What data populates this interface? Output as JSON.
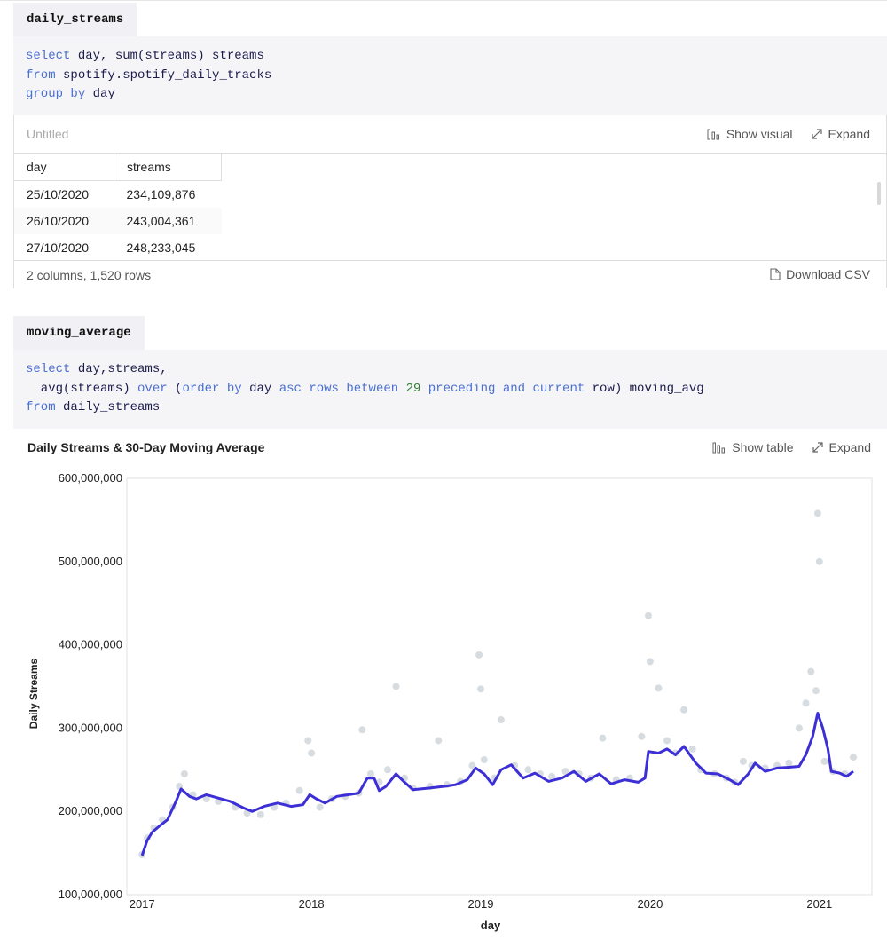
{
  "cell1": {
    "name": "daily_streams",
    "code": {
      "l1_kw": "select",
      "l1_rest": " day, sum(streams) streams",
      "l2_kw": "from",
      "l2_rest": " spotify.spotify_daily_tracks",
      "l3_kw1": "group",
      "l3_kw2": "by",
      "l3_rest": " day"
    },
    "result_title": "Untitled",
    "actions": {
      "visual": "Show visual",
      "expand": "Expand"
    },
    "table": {
      "columns": [
        "day",
        "streams"
      ],
      "rows": [
        [
          "25/10/2020",
          "234,109,876"
        ],
        [
          "26/10/2020",
          "243,004,361"
        ],
        [
          "27/10/2020",
          "248,233,045"
        ]
      ]
    },
    "footer": {
      "summary": "2 columns, 1,520 rows",
      "download": "Download CSV"
    }
  },
  "cell2": {
    "name": "moving_average",
    "code": {
      "l1_kw": "select",
      "l1_rest": " day,streams,",
      "l2_pre": "  avg(streams) ",
      "l2_over": "over",
      "l2_paren": " (",
      "l2_order": "order",
      "l2_by": "by",
      "l2_day": " day ",
      "l2_asc": "asc",
      "l2_rows": "rows",
      "l2_between": "between",
      "l2_num": "29",
      "l2_preceding": "preceding",
      "l2_and": "and",
      "l2_current": "current",
      "l2_end": " row) moving_avg",
      "l3_kw": "from",
      "l3_rest": " daily_streams"
    },
    "chart_title": "Daily Streams & 30-Day Moving Average",
    "actions": {
      "table": "Show table",
      "expand": "Expand"
    }
  },
  "chart_data": {
    "type": "scatter",
    "title": "Daily Streams & 30-Day Moving Average",
    "xlabel": "day",
    "ylabel": "Daily Streams",
    "xlim": [
      2016.91,
      2021.31
    ],
    "ylim": [
      100000000,
      600000000
    ],
    "x_ticks": [
      "2017",
      "2018",
      "2019",
      "2020",
      "2021"
    ],
    "y_ticks": [
      "100,000,000",
      "200,000,000",
      "300,000,000",
      "400,000,000",
      "500,000,000",
      "600,000,000"
    ],
    "series": [
      {
        "name": "streams",
        "style": "points",
        "color": "#c9d0d6",
        "points": [
          [
            2017.0,
            148000000
          ],
          [
            2017.03,
            168000000
          ],
          [
            2017.07,
            180000000
          ],
          [
            2017.12,
            190000000
          ],
          [
            2017.18,
            205000000
          ],
          [
            2017.22,
            230000000
          ],
          [
            2017.25,
            245000000
          ],
          [
            2017.3,
            220000000
          ],
          [
            2017.38,
            215000000
          ],
          [
            2017.45,
            212000000
          ],
          [
            2017.55,
            205000000
          ],
          [
            2017.62,
            198000000
          ],
          [
            2017.7,
            196000000
          ],
          [
            2017.78,
            205000000
          ],
          [
            2017.85,
            210000000
          ],
          [
            2017.93,
            225000000
          ],
          [
            2017.98,
            285000000
          ],
          [
            2018.0,
            270000000
          ],
          [
            2018.05,
            205000000
          ],
          [
            2018.12,
            215000000
          ],
          [
            2018.2,
            218000000
          ],
          [
            2018.28,
            222000000
          ],
          [
            2018.3,
            298000000
          ],
          [
            2018.35,
            245000000
          ],
          [
            2018.4,
            235000000
          ],
          [
            2018.45,
            250000000
          ],
          [
            2018.5,
            350000000
          ],
          [
            2018.55,
            240000000
          ],
          [
            2018.6,
            228000000
          ],
          [
            2018.7,
            230000000
          ],
          [
            2018.75,
            285000000
          ],
          [
            2018.8,
            232000000
          ],
          [
            2018.88,
            236000000
          ],
          [
            2018.95,
            255000000
          ],
          [
            2018.99,
            388000000
          ],
          [
            2019.0,
            347000000
          ],
          [
            2019.02,
            262000000
          ],
          [
            2019.08,
            240000000
          ],
          [
            2019.12,
            310000000
          ],
          [
            2019.2,
            255000000
          ],
          [
            2019.28,
            250000000
          ],
          [
            2019.35,
            245000000
          ],
          [
            2019.42,
            242000000
          ],
          [
            2019.5,
            248000000
          ],
          [
            2019.58,
            245000000
          ],
          [
            2019.65,
            240000000
          ],
          [
            2019.72,
            288000000
          ],
          [
            2019.8,
            238000000
          ],
          [
            2019.88,
            240000000
          ],
          [
            2019.95,
            290000000
          ],
          [
            2019.99,
            435000000
          ],
          [
            2020.0,
            380000000
          ],
          [
            2020.05,
            348000000
          ],
          [
            2020.1,
            285000000
          ],
          [
            2020.15,
            270000000
          ],
          [
            2020.2,
            322000000
          ],
          [
            2020.25,
            275000000
          ],
          [
            2020.3,
            250000000
          ],
          [
            2020.38,
            245000000
          ],
          [
            2020.45,
            240000000
          ],
          [
            2020.5,
            235000000
          ],
          [
            2020.55,
            260000000
          ],
          [
            2020.6,
            255000000
          ],
          [
            2020.68,
            252000000
          ],
          [
            2020.75,
            255000000
          ],
          [
            2020.82,
            258000000
          ],
          [
            2020.88,
            300000000
          ],
          [
            2020.92,
            330000000
          ],
          [
            2020.95,
            368000000
          ],
          [
            2020.98,
            345000000
          ],
          [
            2020.99,
            558000000
          ],
          [
            2021.0,
            500000000
          ],
          [
            2021.03,
            260000000
          ],
          [
            2021.08,
            248000000
          ],
          [
            2021.15,
            245000000
          ],
          [
            2021.2,
            265000000
          ]
        ]
      },
      {
        "name": "moving_avg",
        "style": "line",
        "color": "#3d2fd6",
        "points": [
          [
            2017.0,
            147000000
          ],
          [
            2017.03,
            165000000
          ],
          [
            2017.06,
            175000000
          ],
          [
            2017.1,
            182000000
          ],
          [
            2017.15,
            190000000
          ],
          [
            2017.2,
            212000000
          ],
          [
            2017.23,
            227000000
          ],
          [
            2017.28,
            218000000
          ],
          [
            2017.32,
            215000000
          ],
          [
            2017.38,
            220000000
          ],
          [
            2017.45,
            216000000
          ],
          [
            2017.52,
            212000000
          ],
          [
            2017.6,
            204000000
          ],
          [
            2017.65,
            200000000
          ],
          [
            2017.72,
            206000000
          ],
          [
            2017.8,
            210000000
          ],
          [
            2017.88,
            206000000
          ],
          [
            2017.95,
            208000000
          ],
          [
            2017.99,
            220000000
          ],
          [
            2018.03,
            215000000
          ],
          [
            2018.08,
            210000000
          ],
          [
            2018.15,
            218000000
          ],
          [
            2018.22,
            220000000
          ],
          [
            2018.28,
            222000000
          ],
          [
            2018.33,
            240000000
          ],
          [
            2018.37,
            240000000
          ],
          [
            2018.4,
            225000000
          ],
          [
            2018.44,
            230000000
          ],
          [
            2018.5,
            245000000
          ],
          [
            2018.55,
            235000000
          ],
          [
            2018.6,
            226000000
          ],
          [
            2018.7,
            228000000
          ],
          [
            2018.78,
            230000000
          ],
          [
            2018.85,
            232000000
          ],
          [
            2018.92,
            238000000
          ],
          [
            2018.97,
            252000000
          ],
          [
            2019.02,
            245000000
          ],
          [
            2019.07,
            232000000
          ],
          [
            2019.12,
            250000000
          ],
          [
            2019.18,
            256000000
          ],
          [
            2019.25,
            240000000
          ],
          [
            2019.32,
            246000000
          ],
          [
            2019.4,
            236000000
          ],
          [
            2019.48,
            240000000
          ],
          [
            2019.55,
            248000000
          ],
          [
            2019.62,
            236000000
          ],
          [
            2019.7,
            245000000
          ],
          [
            2019.77,
            233000000
          ],
          [
            2019.85,
            238000000
          ],
          [
            2019.93,
            235000000
          ],
          [
            2019.97,
            240000000
          ],
          [
            2019.99,
            272000000
          ],
          [
            2020.05,
            270000000
          ],
          [
            2020.1,
            275000000
          ],
          [
            2020.15,
            268000000
          ],
          [
            2020.2,
            278000000
          ],
          [
            2020.27,
            258000000
          ],
          [
            2020.33,
            246000000
          ],
          [
            2020.4,
            245000000
          ],
          [
            2020.47,
            238000000
          ],
          [
            2020.52,
            232000000
          ],
          [
            2020.58,
            245000000
          ],
          [
            2020.62,
            258000000
          ],
          [
            2020.68,
            248000000
          ],
          [
            2020.75,
            252000000
          ],
          [
            2020.82,
            253000000
          ],
          [
            2020.88,
            254000000
          ],
          [
            2020.92,
            268000000
          ],
          [
            2020.96,
            290000000
          ],
          [
            2020.99,
            318000000
          ],
          [
            2021.02,
            300000000
          ],
          [
            2021.05,
            275000000
          ],
          [
            2021.07,
            248000000
          ],
          [
            2021.12,
            246000000
          ],
          [
            2021.16,
            242000000
          ],
          [
            2021.2,
            248000000
          ]
        ]
      }
    ]
  }
}
